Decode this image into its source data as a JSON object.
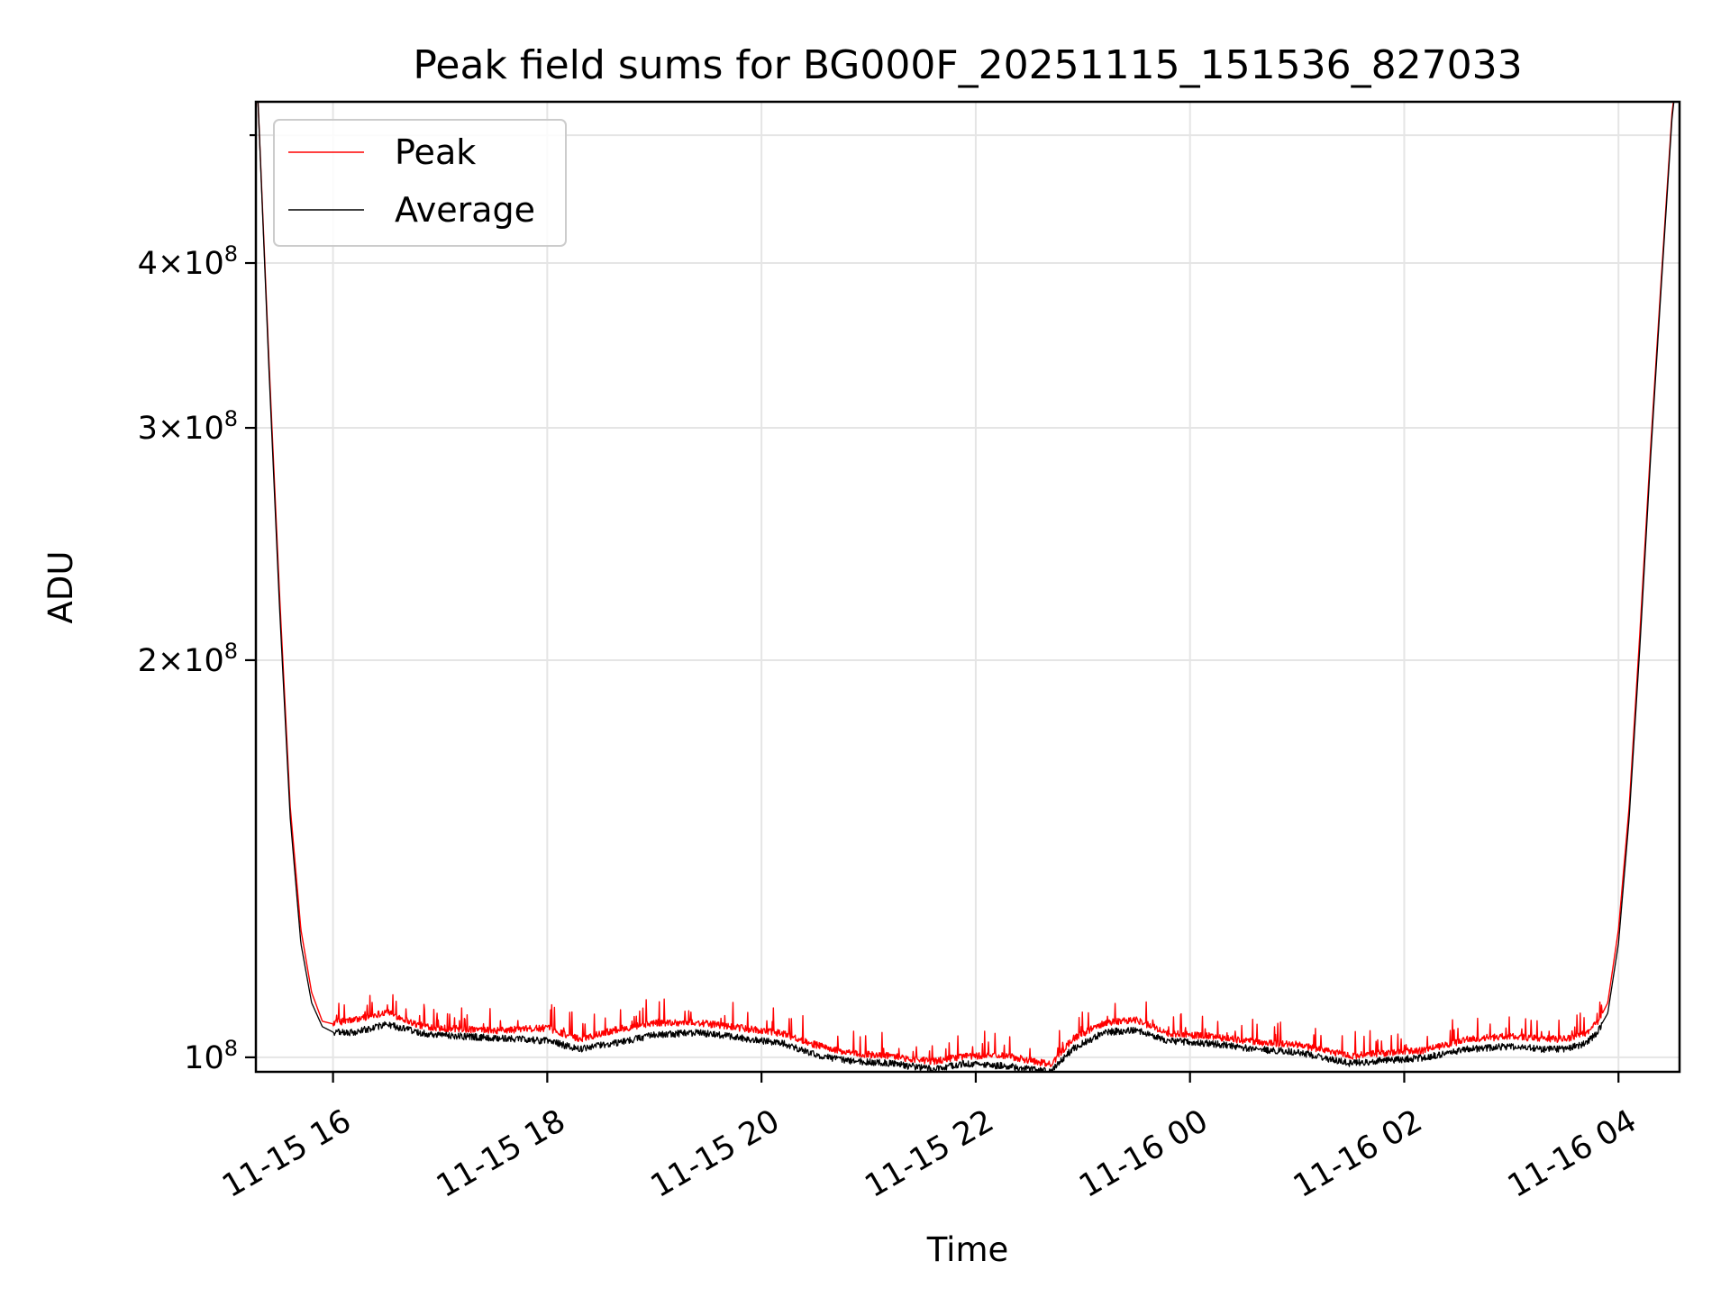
{
  "chart_data": {
    "type": "line",
    "title": "Peak field sums for BG000F_20251115_151536_827033",
    "xlabel": "Time",
    "ylabel": "ADU",
    "yscale": "log",
    "x_unit": "hours since 2025-11-15 00:00",
    "xlim": [
      15.28,
      28.57
    ],
    "ylim": [
      97500000.0,
      530000000.0
    ],
    "x_ticks": [
      {
        "value": 16,
        "label": "11-15 16"
      },
      {
        "value": 18,
        "label": "11-15 18"
      },
      {
        "value": 20,
        "label": "11-15 20"
      },
      {
        "value": 22,
        "label": "11-15 22"
      },
      {
        "value": 24,
        "label": "11-16 00"
      },
      {
        "value": 26,
        "label": "11-16 02"
      },
      {
        "value": 28,
        "label": "11-16 04"
      }
    ],
    "y_ticks": [
      {
        "value": 100000000,
        "mantissa": "",
        "exponent": "8"
      },
      {
        "value": 200000000,
        "mantissa": "2",
        "exponent": "8"
      },
      {
        "value": 300000000,
        "mantissa": "3",
        "exponent": "8"
      },
      {
        "value": 400000000,
        "mantissa": "4",
        "exponent": "8"
      }
    ],
    "y_minor_ticks": [
      500000000
    ],
    "grid": true,
    "legend": {
      "position": "top-left",
      "entries": [
        "Peak",
        "Average"
      ]
    },
    "series": [
      {
        "name": "Peak",
        "color": "#ff0000",
        "x": [
          15.3,
          15.4,
          15.5,
          15.6,
          15.7,
          15.8,
          15.9,
          16.0,
          16.2,
          16.5,
          16.8,
          17.0,
          17.5,
          18.0,
          18.3,
          18.6,
          19.0,
          19.4,
          19.8,
          20.2,
          20.5,
          20.8,
          21.2,
          21.6,
          21.9,
          22.3,
          22.7,
          22.9,
          23.2,
          23.5,
          23.8,
          24.2,
          24.6,
          25.0,
          25.5,
          25.8,
          26.2,
          26.6,
          27.0,
          27.3,
          27.5,
          27.7,
          27.8,
          27.9,
          28.0,
          28.1,
          28.2,
          28.3,
          28.4,
          28.5,
          28.55
        ],
        "y": [
          530000000.0,
          340000000.0,
          225000000.0,
          155000000.0,
          125000000.0,
          112000000.0,
          106500000.0,
          106000000.0,
          106500000.0,
          108000000.0,
          105500000.0,
          105000000.0,
          104500000.0,
          105000000.0,
          103000000.0,
          104500000.0,
          106000000.0,
          106000000.0,
          105000000.0,
          104000000.0,
          102000000.0,
          100500000.0,
          100000000.0,
          99000000.0,
          100000000.0,
          100000000.0,
          98500000.0,
          103000000.0,
          106000000.0,
          106500000.0,
          104000000.0,
          103500000.0,
          102500000.0,
          102000000.0,
          100000000.0,
          100500000.0,
          101000000.0,
          103000000.0,
          103500000.0,
          103000000.0,
          103000000.0,
          104000000.0,
          106000000.0,
          110000000.0,
          125000000.0,
          155000000.0,
          210000000.0,
          290000000.0,
          390000000.0,
          520000000.0,
          560000000.0
        ]
      },
      {
        "name": "Average",
        "color": "#000000",
        "x": [
          15.3,
          15.4,
          15.5,
          15.6,
          15.7,
          15.8,
          15.9,
          16.0,
          16.2,
          16.5,
          16.8,
          17.0,
          17.5,
          18.0,
          18.3,
          18.6,
          19.0,
          19.4,
          19.8,
          20.2,
          20.5,
          20.8,
          21.2,
          21.6,
          21.9,
          22.3,
          22.7,
          22.9,
          23.2,
          23.5,
          23.8,
          24.2,
          24.6,
          25.0,
          25.5,
          25.8,
          26.2,
          26.6,
          27.0,
          27.3,
          27.5,
          27.7,
          27.8,
          27.9,
          28.0,
          28.1,
          28.2,
          28.3,
          28.4,
          28.5,
          28.55
        ],
        "y": [
          530000000.0,
          335000000.0,
          220000000.0,
          152000000.0,
          122000000.0,
          110000000.0,
          105500000.0,
          104500000.0,
          104500000.0,
          106000000.0,
          104500000.0,
          104000000.0,
          103500000.0,
          103000000.0,
          101500000.0,
          102500000.0,
          104000000.0,
          104500000.0,
          103500000.0,
          102500000.0,
          100500000.0,
          99500000.0,
          99000000.0,
          98000000.0,
          99000000.0,
          98500000.0,
          97500000.0,
          101500000.0,
          104500000.0,
          105000000.0,
          103000000.0,
          102500000.0,
          101500000.0,
          101000000.0,
          99000000.0,
          99500000.0,
          100000000.0,
          101500000.0,
          102000000.0,
          101500000.0,
          101500000.0,
          102500000.0,
          104500000.0,
          108000000.0,
          122000000.0,
          152000000.0,
          205000000.0,
          285000000.0,
          385000000.0,
          515000000.0,
          560000000.0
        ]
      }
    ]
  }
}
